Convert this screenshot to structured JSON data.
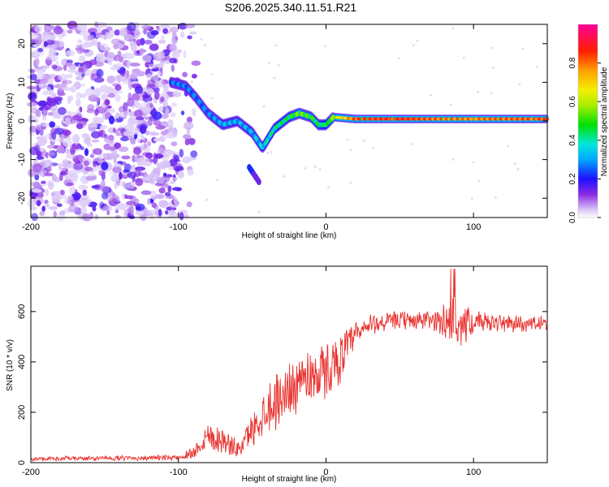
{
  "title": "S206.2025.340.11.51.R21",
  "chart_data": [
    {
      "type": "heatmap",
      "name": "spectrogram",
      "xlabel": "Height of straight line (km)",
      "ylabel": "Frequency (Hz)",
      "xlim": [
        -200,
        150
      ],
      "ylim": [
        -25,
        25
      ],
      "xticks": [
        "-200",
        "-100",
        "0",
        "100"
      ],
      "yticks": [
        "-20",
        "-10",
        "0",
        "10",
        "20"
      ],
      "colorbar": {
        "label": "Normalized spectral amplitude",
        "range": [
          0,
          1
        ],
        "ticks": [
          "0.0",
          "0.2",
          "0.4",
          "0.6",
          "0.8"
        ]
      },
      "noise_region_x": [
        -200,
        -100
      ],
      "signal_trace": [
        {
          "x": -105,
          "f": 10,
          "amp": 0.3
        },
        {
          "x": -95,
          "f": 9,
          "amp": 0.3
        },
        {
          "x": -88,
          "f": 6,
          "amp": 0.3
        },
        {
          "x": -80,
          "f": 2,
          "amp": 0.3
        },
        {
          "x": -70,
          "f": -1,
          "amp": 0.35
        },
        {
          "x": -60,
          "f": 0,
          "amp": 0.35
        },
        {
          "x": -50,
          "f": -3,
          "amp": 0.35
        },
        {
          "x": -43,
          "f": -7,
          "amp": 0.4
        },
        {
          "x": -35,
          "f": -2,
          "amp": 0.45
        },
        {
          "x": -25,
          "f": 1,
          "amp": 0.5
        },
        {
          "x": -18,
          "f": 2,
          "amp": 0.6
        },
        {
          "x": -10,
          "f": 1,
          "amp": 0.55
        },
        {
          "x": -5,
          "f": -1,
          "amp": 0.5
        },
        {
          "x": 0,
          "f": -1,
          "amp": 0.45
        },
        {
          "x": 5,
          "f": 1,
          "amp": 0.6
        },
        {
          "x": 20,
          "f": 0.5,
          "amp": 0.9
        },
        {
          "x": 50,
          "f": 0.5,
          "amp": 0.95
        },
        {
          "x": 80,
          "f": 0.5,
          "amp": 0.85
        },
        {
          "x": 100,
          "f": 0.5,
          "amp": 0.85
        },
        {
          "x": 150,
          "f": 0.5,
          "amp": 0.9
        }
      ],
      "secondary_branch": [
        {
          "x": -52,
          "f": -12
        },
        {
          "x": -45,
          "f": -16
        }
      ]
    },
    {
      "type": "line",
      "name": "snr",
      "xlabel": "Height of straight line (km)",
      "ylabel": "SNR (10 * v/v)",
      "xlim": [
        -200,
        150
      ],
      "ylim": [
        0,
        780
      ],
      "xticks": [
        "-200",
        "-100",
        "0",
        "100"
      ],
      "yticks": [
        "0",
        "200",
        "400",
        "600"
      ],
      "color": "#e8302c",
      "envelope": [
        {
          "x": -200,
          "mean": 15,
          "noise": 8
        },
        {
          "x": -100,
          "mean": 20,
          "noise": 10
        },
        {
          "x": -90,
          "mean": 40,
          "noise": 25
        },
        {
          "x": -80,
          "mean": 110,
          "noise": 60
        },
        {
          "x": -70,
          "mean": 90,
          "noise": 50
        },
        {
          "x": -60,
          "mean": 50,
          "noise": 35
        },
        {
          "x": -50,
          "mean": 130,
          "noise": 60
        },
        {
          "x": -40,
          "mean": 220,
          "noise": 100
        },
        {
          "x": -30,
          "mean": 260,
          "noise": 110
        },
        {
          "x": -20,
          "mean": 320,
          "noise": 110
        },
        {
          "x": -10,
          "mean": 350,
          "noise": 110
        },
        {
          "x": 0,
          "mean": 360,
          "noise": 110
        },
        {
          "x": 10,
          "mean": 420,
          "noise": 90
        },
        {
          "x": 20,
          "mean": 500,
          "noise": 60
        },
        {
          "x": 30,
          "mean": 550,
          "noise": 40
        },
        {
          "x": 50,
          "mean": 565,
          "noise": 35
        },
        {
          "x": 75,
          "mean": 565,
          "noise": 40
        },
        {
          "x": 85,
          "mean": 560,
          "noise": 130
        },
        {
          "x": 92,
          "mean": 555,
          "noise": 110
        },
        {
          "x": 100,
          "mean": 555,
          "noise": 40
        },
        {
          "x": 150,
          "mean": 550,
          "noise": 30
        }
      ]
    }
  ]
}
